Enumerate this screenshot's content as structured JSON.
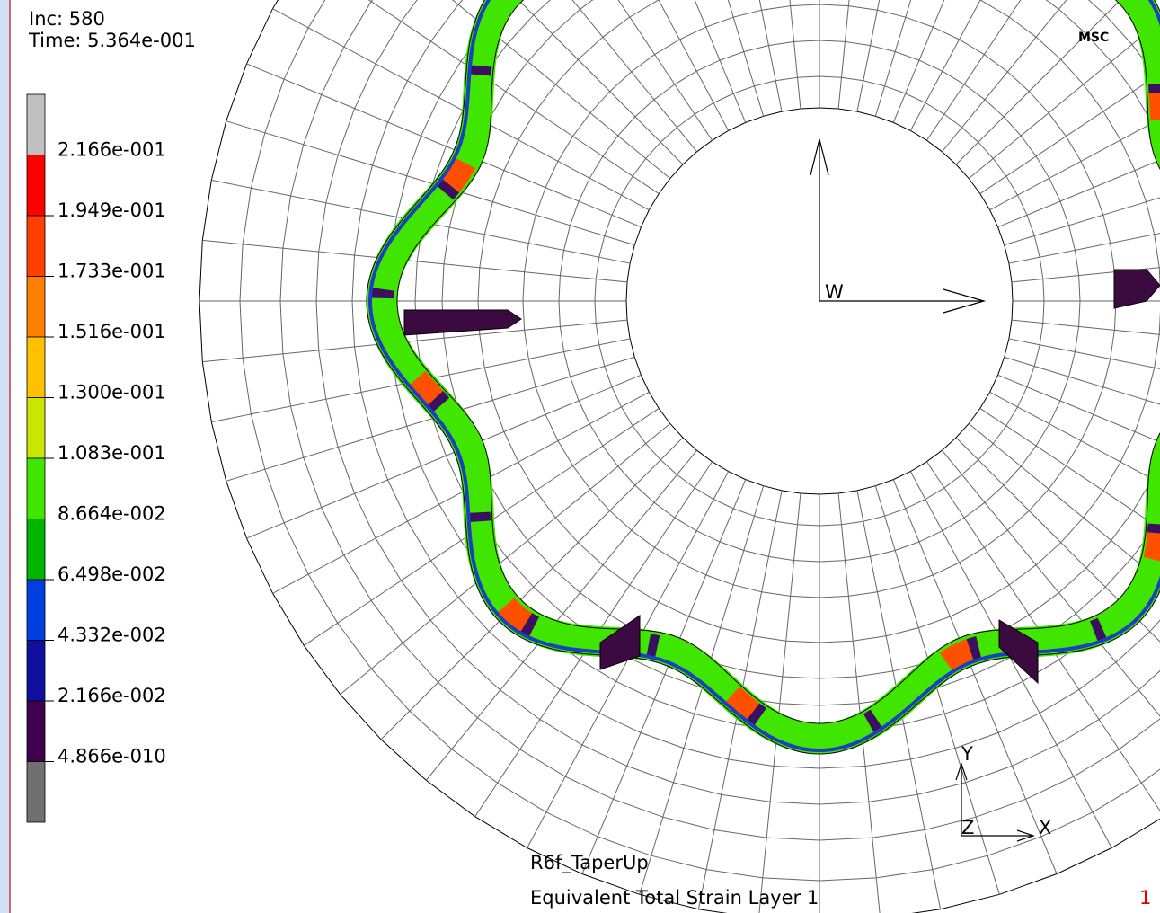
{
  "header": {
    "increment": "Inc:  580",
    "time": "Time:  5.364e-001",
    "logo": "MSC"
  },
  "legend": {
    "labels": [
      "2.166e-001",
      "1.949e-001",
      "1.733e-001",
      "1.516e-001",
      "1.300e-001",
      "1.083e-001",
      "8.664e-002",
      "6.498e-002",
      "4.332e-002",
      "2.166e-002",
      "4.866e-010"
    ],
    "colors": [
      "#c0c0c0",
      "#ff0000",
      "#ff4000",
      "#ff8000",
      "#ffc000",
      "#c8e600",
      "#40e600",
      "#00b400",
      "#0040e0",
      "#1010a0",
      "#400050",
      "#707070"
    ]
  },
  "axes": {
    "w": "W",
    "x": "X",
    "y": "Y",
    "z": "Z"
  },
  "footer": {
    "model": "R6f_TaperUp",
    "quantity": "Equivalent Total Strain Layer 1",
    "index": "1"
  }
}
